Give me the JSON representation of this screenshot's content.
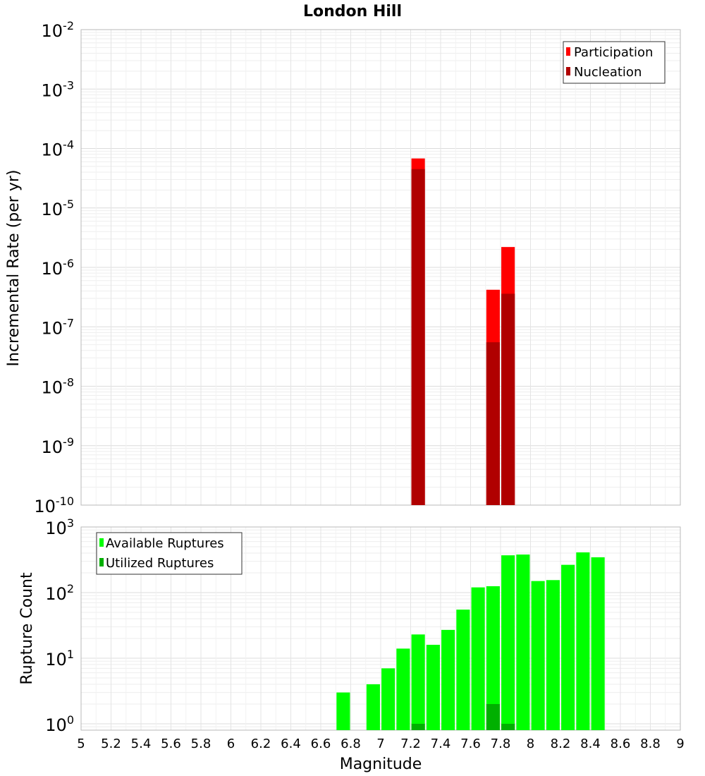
{
  "chart_data": [
    {
      "type": "bar",
      "title": "London Hill",
      "xlabel": "",
      "ylabel": "Incremental Rate (per yr)",
      "y_scale": "log",
      "xlim": [
        5,
        9
      ],
      "ylim": [
        1e-10,
        0.01
      ],
      "y_tick_base": "10",
      "y_tick_exponents": [
        "-10",
        "-9",
        "-8",
        "-7",
        "-6",
        "-5",
        "-4",
        "-3",
        "-2"
      ],
      "legend_position": "top-right",
      "grid": true,
      "bar_width": 0.09,
      "series": [
        {
          "name": "Participation",
          "color": "#ff0000",
          "x": [
            7.25,
            7.75,
            7.85
          ],
          "values": [
            6.8e-05,
            4.2e-07,
            2.2e-06
          ]
        },
        {
          "name": "Nucleation",
          "color": "#b00000",
          "x": [
            7.25,
            7.75,
            7.85
          ],
          "values": [
            4.5e-05,
            5.5e-08,
            3.6e-07
          ]
        }
      ]
    },
    {
      "type": "bar",
      "title": "",
      "xlabel": "Magnitude",
      "ylabel": "Rupture Count",
      "y_scale": "log",
      "xlim": [
        5,
        9
      ],
      "ylim": [
        0.8,
        1000
      ],
      "y_tick_base": "10",
      "y_tick_exponents": [
        "0",
        "1",
        "2",
        "3"
      ],
      "x_ticks": [
        "5",
        "5.2",
        "5.4",
        "5.6",
        "5.8",
        "6",
        "6.2",
        "6.4",
        "6.6",
        "6.8",
        "7",
        "7.2",
        "7.4",
        "7.6",
        "7.8",
        "8",
        "8.2",
        "8.4",
        "8.6",
        "8.8",
        "9"
      ],
      "legend_position": "top-left",
      "grid": true,
      "bar_width": 0.09,
      "series": [
        {
          "name": "Available Ruptures",
          "color": "#00ff00",
          "x": [
            6.75,
            6.95,
            7.05,
            7.15,
            7.25,
            7.35,
            7.45,
            7.55,
            7.65,
            7.75,
            7.85,
            7.95,
            8.05,
            8.15,
            8.25,
            8.35,
            8.45
          ],
          "values": [
            3,
            4,
            7,
            14,
            23,
            16,
            27,
            55,
            120,
            125,
            370,
            380,
            150,
            155,
            265,
            410,
            345
          ]
        },
        {
          "name": "Utilized Ruptures",
          "color": "#00b000",
          "x": [
            7.25,
            7.75,
            7.85
          ],
          "values": [
            1,
            2,
            1
          ]
        }
      ]
    }
  ]
}
